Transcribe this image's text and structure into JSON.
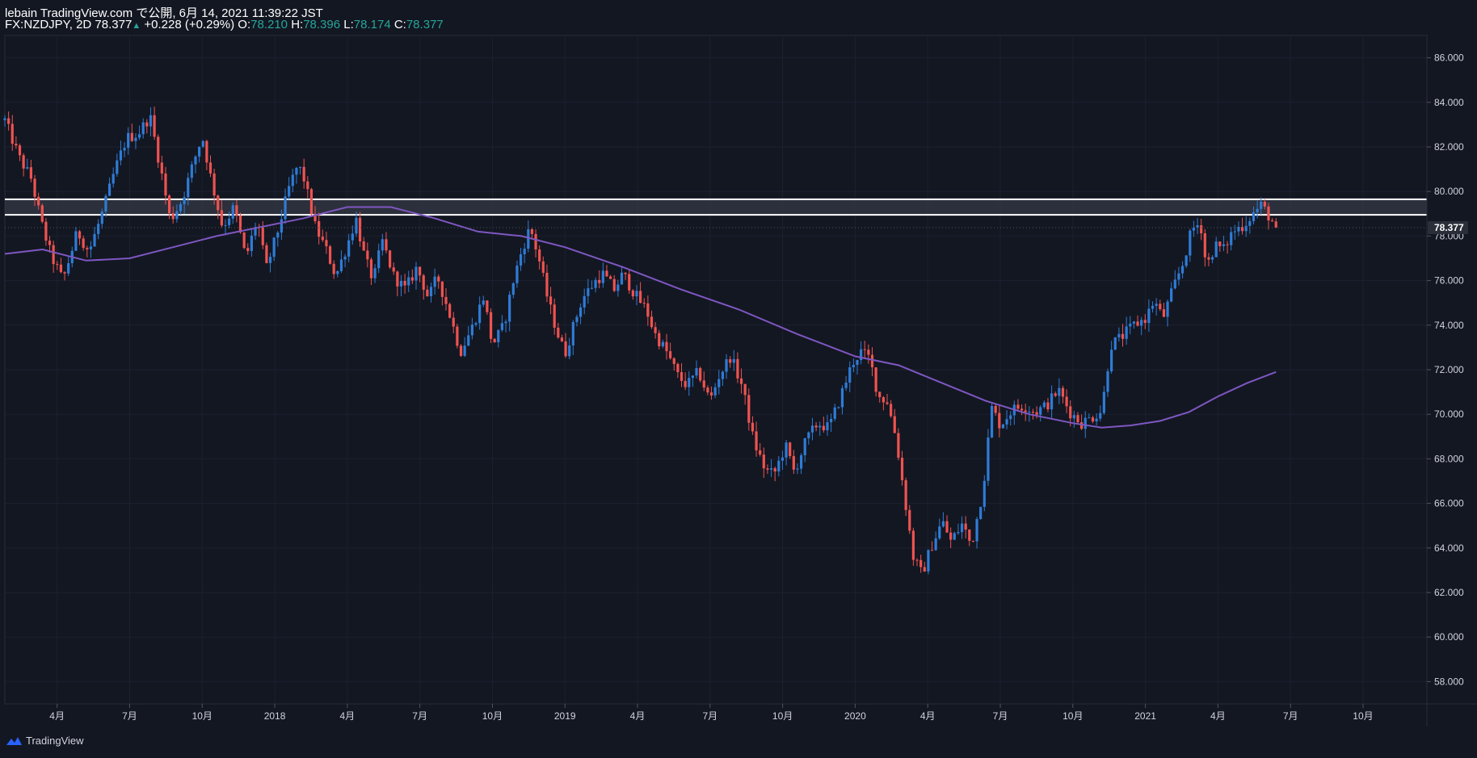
{
  "header": {
    "line1": "lebain TradingView.com で公開, 6月 14, 2021 11:39:22 JST",
    "symbol": "FX:NZDJPY, 2D",
    "last": "78.377",
    "arrow": "▲",
    "change": "+0.228 (+0.29%)",
    "o_label": "O:",
    "o_value": "78.210",
    "h_label": "H:",
    "h_value": "78.396",
    "l_label": "L:",
    "l_value": "78.174",
    "c_label": "C:",
    "c_value": "78.377"
  },
  "footer": {
    "brand": "TradingView",
    "icon": "tradingview-logo-icon"
  },
  "colors": {
    "background": "#131722",
    "up": "#2e7cd6",
    "down": "#ef5350",
    "ma": "#7e57c2",
    "axis_text": "#d1d4dc",
    "zone_line": "#ffffff",
    "last_label_bg": "#2a2e39"
  },
  "chart_data": {
    "type": "candlestick",
    "symbol": "NZDJPY",
    "interval": "2D",
    "ylim": [
      57.0,
      87.0
    ],
    "y_ticks": [
      "58.000",
      "60.000",
      "62.000",
      "64.000",
      "66.000",
      "68.000",
      "70.000",
      "72.000",
      "74.000",
      "76.000",
      "78.000",
      "80.000",
      "82.000",
      "84.000",
      "86.000"
    ],
    "x_ticks": [
      "4月",
      "7月",
      "10月",
      "2018",
      "4月",
      "7月",
      "10月",
      "2019",
      "4月",
      "7月",
      "10月",
      "2020",
      "4月",
      "7月",
      "10月",
      "2021",
      "4月",
      "7月",
      "10月"
    ],
    "x_tick_dates": [
      2017.25,
      2017.5,
      2017.75,
      2018.0,
      2018.25,
      2018.5,
      2018.75,
      2019.0,
      2019.25,
      2019.5,
      2019.75,
      2020.0,
      2020.25,
      2020.5,
      2020.75,
      2021.0,
      2021.25,
      2021.5,
      2021.75
    ],
    "xlim": [
      2017.07,
      2021.97
    ],
    "last_price_label": "78.377",
    "last_price": 78.377,
    "resistance_zone": {
      "top": 79.65,
      "bottom": 78.95
    },
    "price_path": [
      [
        2017.07,
        83.2
      ],
      [
        2017.12,
        81.5
      ],
      [
        2017.16,
        80.6
      ],
      [
        2017.2,
        78.4
      ],
      [
        2017.23,
        77.1
      ],
      [
        2017.27,
        76.0
      ],
      [
        2017.32,
        78.2
      ],
      [
        2017.36,
        77.3
      ],
      [
        2017.41,
        79.2
      ],
      [
        2017.45,
        81.0
      ],
      [
        2017.49,
        82.4
      ],
      [
        2017.53,
        82.6
      ],
      [
        2017.57,
        83.4
      ],
      [
        2017.61,
        80.8
      ],
      [
        2017.64,
        78.7
      ],
      [
        2017.68,
        79.6
      ],
      [
        2017.72,
        81.3
      ],
      [
        2017.75,
        82.5
      ],
      [
        2017.78,
        80.6
      ],
      [
        2017.82,
        78.4
      ],
      [
        2017.86,
        79.3
      ],
      [
        2017.9,
        77.0
      ],
      [
        2017.94,
        78.8
      ],
      [
        2017.97,
        76.5
      ],
      [
        2018.01,
        78.2
      ],
      [
        2018.05,
        80.2
      ],
      [
        2018.08,
        81.2
      ],
      [
        2018.1,
        80.6
      ],
      [
        2018.14,
        78.4
      ],
      [
        2018.18,
        77.3
      ],
      [
        2018.21,
        76.2
      ],
      [
        2018.25,
        77.6
      ],
      [
        2018.28,
        78.8
      ],
      [
        2018.31,
        77.0
      ],
      [
        2018.34,
        76.0
      ],
      [
        2018.37,
        77.8
      ],
      [
        2018.41,
        76.2
      ],
      [
        2018.45,
        75.6
      ],
      [
        2018.49,
        76.6
      ],
      [
        2018.53,
        75.2
      ],
      [
        2018.56,
        76.2
      ],
      [
        2018.6,
        74.6
      ],
      [
        2018.64,
        72.8
      ],
      [
        2018.68,
        73.9
      ],
      [
        2018.72,
        75.3
      ],
      [
        2018.75,
        73.1
      ],
      [
        2018.79,
        74.0
      ],
      [
        2018.82,
        75.9
      ],
      [
        2018.85,
        77.3
      ],
      [
        2018.88,
        78.4
      ],
      [
        2018.91,
        77.0
      ],
      [
        2018.94,
        75.2
      ],
      [
        2018.97,
        73.8
      ],
      [
        2019.0,
        72.7
      ],
      [
        2019.03,
        74.0
      ],
      [
        2019.06,
        75.2
      ],
      [
        2019.1,
        75.9
      ],
      [
        2019.13,
        76.3
      ],
      [
        2019.17,
        75.6
      ],
      [
        2019.2,
        76.3
      ],
      [
        2019.24,
        75.4
      ],
      [
        2019.28,
        74.7
      ],
      [
        2019.31,
        73.6
      ],
      [
        2019.35,
        72.8
      ],
      [
        2019.39,
        71.7
      ],
      [
        2019.42,
        71.3
      ],
      [
        2019.46,
        71.9
      ],
      [
        2019.5,
        70.6
      ],
      [
        2019.53,
        71.7
      ],
      [
        2019.57,
        72.6
      ],
      [
        2019.61,
        71.3
      ],
      [
        2019.65,
        68.8
      ],
      [
        2019.69,
        67.5
      ],
      [
        2019.72,
        67.3
      ],
      [
        2019.76,
        68.6
      ],
      [
        2019.79,
        67.4
      ],
      [
        2019.83,
        68.8
      ],
      [
        2019.87,
        69.6
      ],
      [
        2019.91,
        69.4
      ],
      [
        2019.95,
        70.8
      ],
      [
        2019.99,
        72.3
      ],
      [
        2020.02,
        72.8
      ],
      [
        2020.05,
        72.5
      ],
      [
        2020.08,
        70.8
      ],
      [
        2020.11,
        70.6
      ],
      [
        2020.14,
        69.0
      ],
      [
        2020.17,
        66.3
      ],
      [
        2020.2,
        63.6
      ],
      [
        2020.23,
        62.8
      ],
      [
        2020.26,
        64.0
      ],
      [
        2020.3,
        65.2
      ],
      [
        2020.33,
        64.3
      ],
      [
        2020.37,
        65.1
      ],
      [
        2020.4,
        64.1
      ],
      [
        2020.44,
        66.6
      ],
      [
        2020.47,
        70.3
      ],
      [
        2020.5,
        69.5
      ],
      [
        2020.54,
        70.2
      ],
      [
        2020.58,
        70.4
      ],
      [
        2020.62,
        70.1
      ],
      [
        2020.66,
        70.4
      ],
      [
        2020.7,
        71.1
      ],
      [
        2020.74,
        70.1
      ],
      [
        2020.78,
        69.6
      ],
      [
        2020.82,
        69.9
      ],
      [
        2020.85,
        70.2
      ],
      [
        2020.88,
        73.1
      ],
      [
        2020.92,
        73.5
      ],
      [
        2020.96,
        74.0
      ],
      [
        2021.0,
        74.3
      ],
      [
        2021.03,
        75.1
      ],
      [
        2021.06,
        74.3
      ],
      [
        2021.1,
        75.8
      ],
      [
        2021.13,
        76.8
      ],
      [
        2021.16,
        78.3
      ],
      [
        2021.19,
        78.6
      ],
      [
        2021.21,
        76.6
      ],
      [
        2021.24,
        77.6
      ],
      [
        2021.27,
        77.4
      ],
      [
        2021.3,
        78.2
      ],
      [
        2021.34,
        78.5
      ],
      [
        2021.37,
        79.0
      ],
      [
        2021.4,
        79.4
      ],
      [
        2021.43,
        78.8
      ],
      [
        2021.45,
        78.377
      ]
    ],
    "ma_path": [
      [
        2017.07,
        77.2
      ],
      [
        2017.2,
        77.4
      ],
      [
        2017.35,
        76.9
      ],
      [
        2017.5,
        77.0
      ],
      [
        2017.65,
        77.5
      ],
      [
        2017.8,
        78.0
      ],
      [
        2017.95,
        78.4
      ],
      [
        2018.1,
        78.8
      ],
      [
        2018.25,
        79.3
      ],
      [
        2018.4,
        79.3
      ],
      [
        2018.55,
        78.8
      ],
      [
        2018.7,
        78.2
      ],
      [
        2018.85,
        78.0
      ],
      [
        2019.0,
        77.5
      ],
      [
        2019.2,
        76.6
      ],
      [
        2019.4,
        75.6
      ],
      [
        2019.6,
        74.7
      ],
      [
        2019.8,
        73.6
      ],
      [
        2020.0,
        72.6
      ],
      [
        2020.15,
        72.2
      ],
      [
        2020.3,
        71.4
      ],
      [
        2020.45,
        70.6
      ],
      [
        2020.6,
        70.0
      ],
      [
        2020.75,
        69.6
      ],
      [
        2020.85,
        69.4
      ],
      [
        2020.95,
        69.5
      ],
      [
        2021.05,
        69.7
      ],
      [
        2021.15,
        70.1
      ],
      [
        2021.25,
        70.8
      ],
      [
        2021.35,
        71.4
      ],
      [
        2021.45,
        71.9
      ]
    ]
  }
}
